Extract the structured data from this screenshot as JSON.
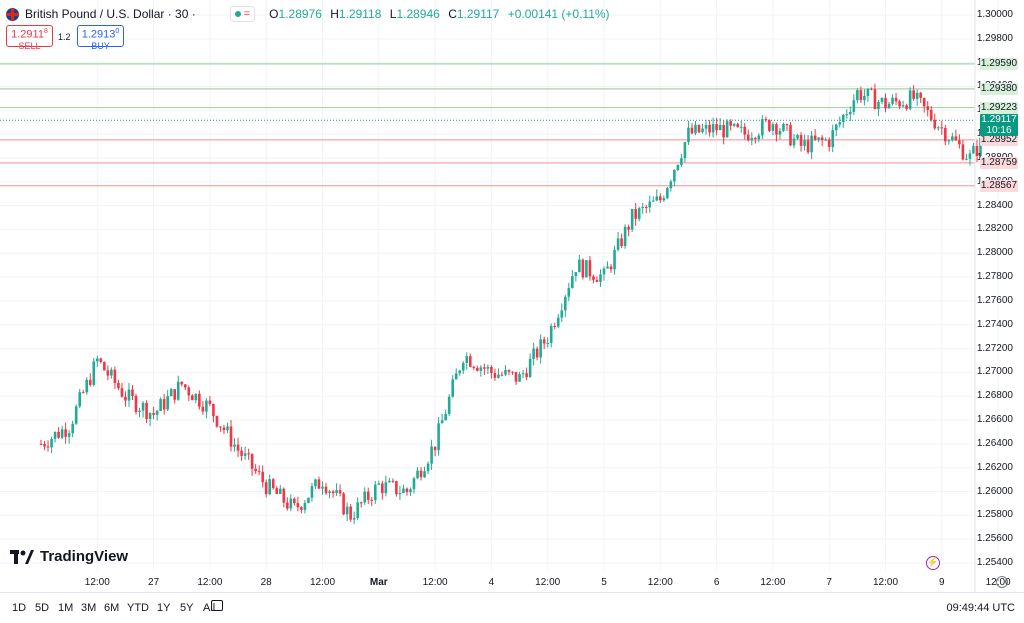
{
  "header": {
    "title": "British Pound / U.S. Dollar · 30 ·",
    "ohlc": [
      {
        "label": "O",
        "value": "1.28976"
      },
      {
        "label": "H",
        "value": "1.29118"
      },
      {
        "label": "L",
        "value": "1.28946"
      },
      {
        "label": "C",
        "value": "1.29117"
      }
    ],
    "change": "+0.00141 (+0.11%)",
    "eq_symbol": "="
  },
  "trade": {
    "sell_price": "1.2911",
    "sell_sup": "8",
    "sell_label": "SELL",
    "spread": "1.2",
    "buy_price": "1.2913",
    "buy_sup": "0",
    "buy_label": "BUY"
  },
  "y_axis_labels": [
    "1.30000",
    "1.29800",
    "1.29600",
    "1.29400",
    "1.29200",
    "1.29000",
    "1.28800",
    "1.28600",
    "1.28400",
    "1.28200",
    "1.28000",
    "1.27800",
    "1.27600",
    "1.27400",
    "1.27200",
    "1.27000",
    "1.26800",
    "1.26600",
    "1.26400",
    "1.26200",
    "1.26000",
    "1.25800",
    "1.25600",
    "1.25400"
  ],
  "price_levels": [
    {
      "value": "1.29590",
      "type": "resistance"
    },
    {
      "value": "1.29380",
      "type": "resistance"
    },
    {
      "value": "1.29223",
      "type": "resistance"
    },
    {
      "value": "1.28952",
      "type": "support"
    },
    {
      "value": "1.28759",
      "type": "support"
    },
    {
      "value": "1.28567",
      "type": "support"
    }
  ],
  "last_price": {
    "value": "1.29117",
    "countdown": "10:16"
  },
  "x_axis_labels": [
    {
      "t": 0.5,
      "label": "12:00"
    },
    {
      "t": 1,
      "label": "27"
    },
    {
      "t": 1.5,
      "label": "12:00"
    },
    {
      "t": 2,
      "label": "28"
    },
    {
      "t": 2.5,
      "label": "12:00"
    },
    {
      "t": 3,
      "label": "Mar"
    },
    {
      "t": 3.5,
      "label": "12:00"
    },
    {
      "t": 4,
      "label": "4"
    },
    {
      "t": 4.5,
      "label": "12:00"
    },
    {
      "t": 5,
      "label": "5"
    },
    {
      "t": 5.5,
      "label": "12:00"
    },
    {
      "t": 6,
      "label": "6"
    },
    {
      "t": 6.5,
      "label": "12:00"
    },
    {
      "t": 7,
      "label": "7"
    },
    {
      "t": 7.5,
      "label": "12:00"
    },
    {
      "t": 8,
      "label": "9"
    },
    {
      "t": 8.5,
      "label": "12:00"
    }
  ],
  "timeframes": [
    "1D",
    "5D",
    "1M",
    "3M",
    "6M",
    "YTD",
    "1Y",
    "5Y",
    "All"
  ],
  "clock": "09:49:44 UTC",
  "brand": "TradingView",
  "colors": {
    "up": "#22ab94",
    "down": "#f23645",
    "resistance": "#a5d6a7",
    "support": "#f7a4a8",
    "buy": "#2962ff"
  },
  "icons": {
    "flag": "gb-us-flag-icon",
    "settings": "gear-icon",
    "calendar": "calendar-icon",
    "flash": "flash-icon"
  },
  "chart_data": {
    "type": "candlestick",
    "title": "British Pound / U.S. Dollar · 30",
    "xlabel": "",
    "ylabel": "",
    "ylim": [
      1.254,
      1.3
    ],
    "x": [
      0,
      0.25,
      0.5,
      0.75,
      1.0,
      1.25,
      1.5,
      1.75,
      2.0,
      2.25,
      2.5,
      2.75,
      3.0,
      3.25,
      3.5,
      3.75,
      4.0,
      4.25,
      4.5,
      4.75,
      5.0,
      5.25,
      5.5,
      5.75,
      6.0,
      6.25,
      6.5,
      6.75,
      7.0,
      7.25,
      7.5,
      7.75,
      8.0,
      8.25,
      8.5
    ],
    "close": [
      1.264,
      1.2655,
      1.271,
      1.268,
      1.2665,
      1.269,
      1.267,
      1.2635,
      1.2605,
      1.2585,
      1.261,
      1.258,
      1.2605,
      1.26,
      1.264,
      1.2715,
      1.27,
      1.2695,
      1.273,
      1.279,
      1.278,
      1.283,
      1.2845,
      1.29,
      1.2905,
      1.29,
      1.291,
      1.289,
      1.2895,
      1.2935,
      1.2925,
      1.293,
      1.2905,
      1.288,
      1.29117
    ],
    "grid": true
  }
}
